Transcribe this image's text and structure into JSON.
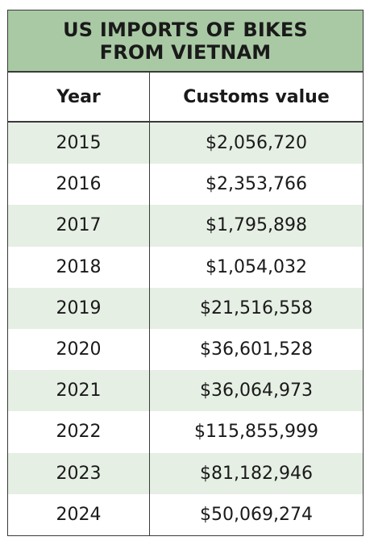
{
  "chart_data": {
    "type": "table",
    "title": "US IMPORTS OF BIKES FROM VIETNAM",
    "columns": [
      "Year",
      "Customs value"
    ],
    "rows": [
      {
        "year": "2015",
        "value": "$2,056,720"
      },
      {
        "year": "2016",
        "value": "$2,353,766"
      },
      {
        "year": "2017",
        "value": "$1,795,898"
      },
      {
        "year": "2018",
        "value": "$1,054,032"
      },
      {
        "year": "2019",
        "value": "$21,516,558"
      },
      {
        "year": "2020",
        "value": "$36,601,528"
      },
      {
        "year": "2021",
        "value": "$36,064,973"
      },
      {
        "year": "2022",
        "value": "$115,855,999"
      },
      {
        "year": "2023",
        "value": "$81,182,946"
      },
      {
        "year": "2024",
        "value": "$50,069,274"
      }
    ]
  },
  "colors": {
    "title_band": "#a9c9a4",
    "shaded_row": "#e6efe4",
    "border": "#3a3a3a",
    "text": "#1a1a1a"
  }
}
